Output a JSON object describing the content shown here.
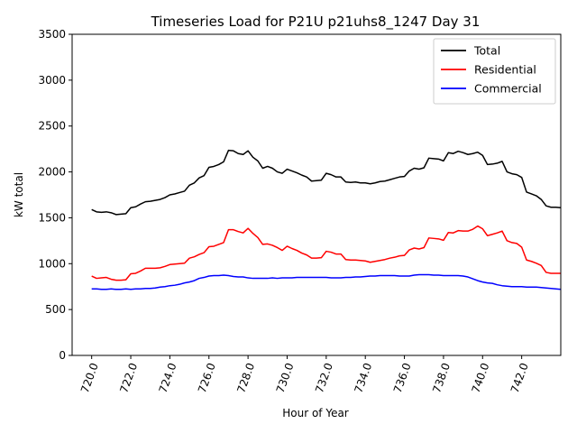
{
  "chart_data": {
    "type": "line",
    "title": "Timeseries Load for P21U p21uhs8_1247  Day 31",
    "xlabel": "Hour of Year",
    "ylabel": "kW total",
    "xlim": [
      719.0,
      744.0
    ],
    "ylim": [
      0,
      3500
    ],
    "xticks": [
      720,
      722,
      724,
      726,
      728,
      730,
      732,
      734,
      736,
      738,
      740,
      742
    ],
    "xtick_labels": [
      "720.0",
      "722.0",
      "724.0",
      "726.0",
      "728.0",
      "730.0",
      "732.0",
      "734.0",
      "736.0",
      "738.0",
      "740.0",
      "742.0"
    ],
    "yticks": [
      0,
      500,
      1000,
      1500,
      2000,
      2500,
      3000,
      3500
    ],
    "ytick_labels": [
      "0",
      "500",
      "1000",
      "1500",
      "2000",
      "2500",
      "3000",
      "3500"
    ],
    "grid": false,
    "legend": "top-right",
    "x_step": 0.25,
    "x_start": 720.0,
    "series": [
      {
        "name": "Total",
        "color": "#000000",
        "values": [
          1590,
          1565,
          1560,
          1565,
          1555,
          1535,
          1540,
          1545,
          1610,
          1620,
          1650,
          1675,
          1680,
          1690,
          1700,
          1720,
          1750,
          1760,
          1775,
          1790,
          1855,
          1880,
          1935,
          1960,
          2050,
          2060,
          2080,
          2110,
          2235,
          2230,
          2200,
          2190,
          2230,
          2160,
          2120,
          2040,
          2060,
          2040,
          2000,
          1985,
          2030,
          2010,
          1990,
          1965,
          1945,
          1900,
          1905,
          1910,
          1985,
          1970,
          1945,
          1945,
          1890,
          1885,
          1890,
          1880,
          1880,
          1870,
          1880,
          1895,
          1900,
          1915,
          1930,
          1945,
          1950,
          2010,
          2040,
          2030,
          2045,
          2150,
          2145,
          2140,
          2120,
          2210,
          2200,
          2225,
          2210,
          2190,
          2200,
          2215,
          2180,
          2080,
          2085,
          2095,
          2115,
          2000,
          1980,
          1970,
          1940,
          1780,
          1760,
          1740,
          1700,
          1630,
          1615,
          1615,
          1610
        ]
      },
      {
        "name": "Residential",
        "color": "#ff0000",
        "values": [
          865,
          840,
          845,
          850,
          830,
          820,
          820,
          825,
          890,
          895,
          920,
          950,
          950,
          950,
          955,
          970,
          990,
          995,
          1000,
          1005,
          1060,
          1075,
          1100,
          1120,
          1185,
          1190,
          1210,
          1230,
          1370,
          1370,
          1350,
          1335,
          1385,
          1330,
          1285,
          1210,
          1215,
          1200,
          1175,
          1145,
          1190,
          1165,
          1145,
          1115,
          1095,
          1060,
          1060,
          1065,
          1135,
          1125,
          1105,
          1105,
          1045,
          1040,
          1040,
          1035,
          1030,
          1015,
          1025,
          1035,
          1045,
          1060,
          1070,
          1085,
          1090,
          1150,
          1170,
          1160,
          1175,
          1280,
          1275,
          1270,
          1255,
          1340,
          1335,
          1360,
          1355,
          1355,
          1375,
          1410,
          1380,
          1305,
          1320,
          1335,
          1355,
          1250,
          1230,
          1220,
          1180,
          1040,
          1025,
          1005,
          980,
          905,
          895,
          895,
          895
        ]
      },
      {
        "name": "Commercial",
        "color": "#0000ff",
        "values": [
          725,
          725,
          720,
          720,
          725,
          720,
          720,
          725,
          720,
          725,
          725,
          730,
          730,
          735,
          745,
          750,
          760,
          765,
          775,
          790,
          800,
          815,
          840,
          850,
          865,
          870,
          870,
          875,
          870,
          860,
          855,
          855,
          845,
          840,
          840,
          840,
          840,
          845,
          840,
          845,
          845,
          845,
          850,
          850,
          850,
          850,
          850,
          850,
          850,
          845,
          845,
          845,
          850,
          850,
          855,
          855,
          860,
          865,
          865,
          870,
          870,
          870,
          870,
          865,
          865,
          865,
          875,
          880,
          880,
          880,
          875,
          875,
          870,
          870,
          870,
          870,
          865,
          855,
          835,
          815,
          800,
          790,
          785,
          770,
          760,
          755,
          750,
          750,
          750,
          745,
          745,
          745,
          740,
          735,
          730,
          725,
          720
        ]
      }
    ]
  }
}
